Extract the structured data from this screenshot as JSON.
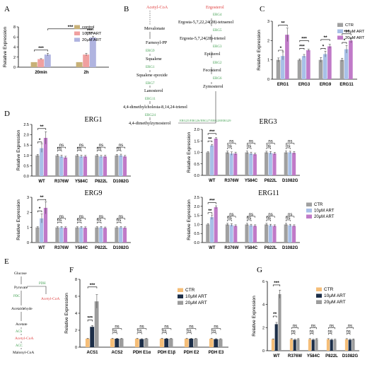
{
  "panel_letters": {
    "A": "A",
    "B": "B",
    "C": "C",
    "D": "D",
    "E": "E",
    "F": "F",
    "G": "G"
  },
  "colors": {
    "control": "#c8b178",
    "low": "#f0a0a0",
    "high": "#b0b4e0",
    "ctr": "#a0a0a0",
    "art10": "#a8c0e8",
    "art20": "#c07ac8",
    "f_ctr": "#f5be78",
    "f_10": "#1c2e48",
    "f_20": "#9c9c9c",
    "green": "#3f9f4f",
    "red": "#e04040",
    "axis": "#000000"
  },
  "pathwayB": {
    "nodes": [
      {
        "key": "acetyl",
        "text": "Acetyl-CoA",
        "kind": "red"
      },
      {
        "key": "meva",
        "text": "Mevalonate",
        "kind": "black"
      },
      {
        "key": "farn",
        "text": "Farnesyl-PP",
        "kind": "black"
      },
      {
        "key": "erg9",
        "text": "ERG9",
        "kind": "green"
      },
      {
        "key": "squal",
        "text": "Squalene",
        "kind": "black"
      },
      {
        "key": "erg1",
        "text": "ERG1",
        "kind": "green"
      },
      {
        "key": "sqep",
        "text": "Squalene epoxide",
        "kind": "black"
      },
      {
        "key": "erg7",
        "text": "ERG7",
        "kind": "green"
      },
      {
        "key": "lano",
        "text": "Lanosterol",
        "kind": "black"
      },
      {
        "key": "erg11",
        "text": "ERG11",
        "kind": "green"
      },
      {
        "key": "dmc",
        "text": "4,4-dimethylcholesta-8,14,24-trienol",
        "kind": "black"
      },
      {
        "key": "erg24",
        "text": "ERG24",
        "kind": "green"
      },
      {
        "key": "dmz",
        "text": "4,4-dimethylzymosterol",
        "kind": "black"
      },
      {
        "key": "ergm",
        "text": "ERG25/ERG26/ERG27/ERG28/ERG29",
        "kind": "green"
      },
      {
        "key": "ergo",
        "text": "Ergosterol",
        "kind": "red"
      },
      {
        "key": "erg4",
        "text": "ERG4",
        "kind": "green"
      },
      {
        "key": "tet",
        "text": "Ergosta-5,7,22,24(28)-tetraenol",
        "kind": "black"
      },
      {
        "key": "erg5",
        "text": "ERG5",
        "kind": "green"
      },
      {
        "key": "tri",
        "text": "Ergosta-5,7,24(28)-trienol",
        "kind": "black"
      },
      {
        "key": "erg3",
        "text": "ERG3",
        "kind": "green"
      },
      {
        "key": "epi",
        "text": "Episterol",
        "kind": "black"
      },
      {
        "key": "erg2",
        "text": "ERG2",
        "kind": "green"
      },
      {
        "key": "fec",
        "text": "Fecosterol",
        "kind": "black"
      },
      {
        "key": "erg6",
        "text": "ERG6",
        "kind": "green"
      },
      {
        "key": "zym",
        "text": "Zymosterol",
        "kind": "black"
      }
    ]
  },
  "pathwayE": {
    "nodes": [
      {
        "key": "glu",
        "text": "Glucose",
        "kind": "black"
      },
      {
        "key": "pyr",
        "text": "Pyruvate",
        "kind": "black"
      },
      {
        "key": "pdh",
        "text": "PDH",
        "kind": "green"
      },
      {
        "key": "pdc",
        "text": "PDC",
        "kind": "green"
      },
      {
        "key": "acCoA1",
        "text": "Acetyl-CoA",
        "kind": "red"
      },
      {
        "key": "ald",
        "text": "Acetaldehyde",
        "kind": "black"
      },
      {
        "key": "ac",
        "text": "Acetate",
        "kind": "black"
      },
      {
        "key": "acs",
        "text": "ACS",
        "kind": "green"
      },
      {
        "key": "acCoA2",
        "text": "Acetyl-CoA",
        "kind": "red"
      },
      {
        "key": "acc",
        "text": "ACC",
        "kind": "green"
      },
      {
        "key": "mal",
        "text": "Malonyl-CoA",
        "kind": "black"
      }
    ]
  },
  "ns": "ns",
  "chart_data": [
    {
      "panel": "A",
      "type": "bar",
      "title": "",
      "ylabel": "Relative Expression",
      "ylim": [
        0,
        8
      ],
      "yticks": [
        0,
        2,
        4,
        6,
        8
      ],
      "categories": [
        "20min",
        "2h"
      ],
      "series": [
        {
          "name": "control",
          "values": [
            1.0,
            1.0
          ]
        },
        {
          "name": "10μM ART",
          "values": [
            1.6,
            2.5
          ]
        },
        {
          "name": "20μM ART",
          "values": [
            2.5,
            5.9
          ]
        }
      ],
      "errors": [
        [
          0,
          0
        ],
        [
          0.1,
          0.25
        ],
        [
          0.25,
          0.25
        ]
      ],
      "legend": "top-left",
      "sig": [
        {
          "text": "***",
          "from": [
            0,
            0
          ],
          "to": [
            0,
            2
          ],
          "y": 3.4
        },
        {
          "text": "***",
          "from": [
            0,
            2
          ],
          "to": [
            1,
            2
          ],
          "y": 7.6
        },
        {
          "text": "***",
          "from": [
            1,
            1
          ],
          "to": [
            1,
            2
          ],
          "y": 6.9
        }
      ]
    },
    {
      "panel": "C",
      "type": "bar",
      "title": "",
      "ylabel": "Relative Expression",
      "ylim": [
        0,
        3
      ],
      "yticks": [
        0,
        1,
        2,
        3
      ],
      "categories": [
        "ERG1",
        "ERG3",
        "ERG9",
        "ERG11"
      ],
      "series": [
        {
          "name": "CTR",
          "values": [
            1.0,
            1.0,
            1.0,
            1.0
          ]
        },
        {
          "name": "10μM ART",
          "values": [
            1.2,
            1.2,
            1.3,
            1.55
          ]
        },
        {
          "name": "20μM ART",
          "values": [
            2.3,
            1.5,
            1.7,
            2.0
          ]
        }
      ],
      "errors": [
        [
          0.1,
          0.05,
          0.12,
          0.08
        ],
        [
          0.2,
          0.08,
          0.15,
          0.2
        ],
        [
          0.35,
          0.05,
          0.1,
          0.12
        ]
      ],
      "legend": "top-right",
      "sig": [
        {
          "text": "**",
          "from": [
            0,
            0
          ],
          "to": [
            0,
            2
          ],
          "y": 2.8
        },
        {
          "text": "*",
          "from": [
            0,
            0
          ],
          "to": [
            0,
            1
          ],
          "y": 1.5
        },
        {
          "text": "***",
          "from": [
            1,
            0
          ],
          "to": [
            1,
            2
          ],
          "y": 2.0
        },
        {
          "text": "***",
          "from": [
            1,
            0
          ],
          "to": [
            1,
            1
          ],
          "y": 1.6
        },
        {
          "text": "**",
          "from": [
            2,
            0
          ],
          "to": [
            2,
            2
          ],
          "y": 2.05
        },
        {
          "text": "*",
          "from": [
            2,
            0
          ],
          "to": [
            2,
            1
          ],
          "y": 1.6
        },
        {
          "text": "***",
          "from": [
            3,
            0
          ],
          "to": [
            3,
            2
          ],
          "y": 2.35
        },
        {
          "text": "*",
          "from": [
            3,
            0
          ],
          "to": [
            3,
            1
          ],
          "y": 1.9
        }
      ]
    },
    {
      "panel": "D1",
      "type": "bar",
      "title": "ERG1",
      "ylabel": "Relative Expression",
      "ylim": [
        0,
        2.5
      ],
      "yticks": [
        0.0,
        0.5,
        1.0,
        1.5,
        2.0,
        2.5
      ],
      "categories": [
        "WT",
        "R376W",
        "Y584C",
        "P822L",
        "D1082G"
      ],
      "series": [
        {
          "name": "CTR",
          "values": [
            1.0,
            1.0,
            1.0,
            1.0,
            1.0
          ]
        },
        {
          "name": "10μM ART",
          "values": [
            1.35,
            0.95,
            0.95,
            0.95,
            1.0
          ]
        },
        {
          "name": "20μM ART",
          "values": [
            1.85,
            0.9,
            0.95,
            0.95,
            0.95
          ]
        }
      ],
      "errors": [
        [
          0.05,
          0.05,
          0.05,
          0.05,
          0.05
        ],
        [
          0.2,
          0.06,
          0.06,
          0.05,
          0.06
        ],
        [
          0.3,
          0.06,
          0.05,
          0.06,
          0.05
        ]
      ],
      "legend": "none",
      "sig": [
        {
          "text": "**",
          "from": [
            0,
            0
          ],
          "to": [
            0,
            2
          ],
          "y": 2.3
        },
        {
          "text": "*",
          "from": [
            0,
            0
          ],
          "to": [
            0,
            1
          ],
          "y": 1.65
        }
      ],
      "ns_y": [
        1.25,
        1.4
      ]
    },
    {
      "panel": "D2",
      "type": "bar",
      "title": "ERG3",
      "ylabel": "Relative Expression",
      "ylim": [
        0,
        2.0
      ],
      "yticks": [
        0.0,
        0.5,
        1.0,
        1.5,
        2.0
      ],
      "categories": [
        "WT",
        "R376W",
        "Y584C",
        "P822L",
        "D1082G"
      ],
      "series": [
        {
          "name": "CTR",
          "values": [
            1.0,
            1.0,
            1.0,
            1.0,
            1.0
          ]
        },
        {
          "name": "10μM ART",
          "values": [
            1.3,
            0.95,
            0.95,
            0.98,
            1.0
          ]
        },
        {
          "name": "20μM ART",
          "values": [
            1.6,
            0.95,
            0.92,
            0.95,
            0.98
          ]
        }
      ],
      "errors": [
        [
          0.03,
          0.06,
          0.06,
          0.05,
          0.06
        ],
        [
          0.05,
          0.07,
          0.06,
          0.06,
          0.05
        ],
        [
          0.04,
          0.06,
          0.05,
          0.05,
          0.06
        ]
      ],
      "legend": "none",
      "sig": [
        {
          "text": "***",
          "from": [
            0,
            0
          ],
          "to": [
            0,
            2
          ],
          "y": 1.82
        },
        {
          "text": "**",
          "from": [
            0,
            0
          ],
          "to": [
            0,
            1
          ],
          "y": 1.5
        }
      ],
      "ns_y": [
        1.2,
        1.4
      ]
    },
    {
      "panel": "D3",
      "type": "bar",
      "title": "ERG9",
      "ylabel": "Relative Expression",
      "ylim": [
        0,
        3
      ],
      "yticks": [
        0,
        1,
        2,
        3
      ],
      "categories": [
        "WT",
        "R376W",
        "Y584C",
        "P822L",
        "D1082G"
      ],
      "series": [
        {
          "name": "CTR",
          "values": [
            1.0,
            1.0,
            1.0,
            1.0,
            1.0
          ]
        },
        {
          "name": "10μM ART",
          "values": [
            1.6,
            1.0,
            1.0,
            1.0,
            1.0
          ]
        },
        {
          "name": "20μM ART",
          "values": [
            2.3,
            0.98,
            0.98,
            0.97,
            0.98
          ]
        }
      ],
      "errors": [
        [
          0.05,
          0.05,
          0.05,
          0.05,
          0.05
        ],
        [
          0.3,
          0.06,
          0.06,
          0.06,
          0.06
        ],
        [
          0.4,
          0.06,
          0.06,
          0.06,
          0.06
        ]
      ],
      "legend": "none",
      "sig": [
        {
          "text": "**",
          "from": [
            0,
            0
          ],
          "to": [
            0,
            2
          ],
          "y": 2.85
        },
        {
          "text": "*",
          "from": [
            0,
            0
          ],
          "to": [
            0,
            1
          ],
          "y": 2.1
        }
      ],
      "ns_y": [
        1.35,
        1.6
      ]
    },
    {
      "panel": "D4",
      "type": "bar",
      "title": "ERG11",
      "ylabel": "Relative Expression",
      "ylim": [
        0,
        2.5
      ],
      "yticks": [
        0.0,
        0.5,
        1.0,
        1.5,
        2.0,
        2.5
      ],
      "categories": [
        "WT",
        "R376W",
        "Y584C",
        "P822L",
        "D1082G"
      ],
      "series": [
        {
          "name": "CTR",
          "values": [
            1.0,
            1.0,
            1.0,
            1.0,
            1.0
          ]
        },
        {
          "name": "10μM ART",
          "values": [
            1.4,
            0.97,
            0.95,
            0.95,
            0.95
          ]
        },
        {
          "name": "20μM ART",
          "values": [
            1.95,
            0.92,
            0.92,
            0.92,
            0.92
          ]
        }
      ],
      "errors": [
        [
          0.05,
          0.06,
          0.06,
          0.06,
          0.06
        ],
        [
          0.12,
          0.07,
          0.06,
          0.06,
          0.06
        ],
        [
          0.08,
          0.06,
          0.06,
          0.06,
          0.06
        ]
      ],
      "legend": "right",
      "sig": [
        {
          "text": "***",
          "from": [
            0,
            0
          ],
          "to": [
            0,
            2
          ],
          "y": 2.2
        },
        {
          "text": "**",
          "from": [
            0,
            0
          ],
          "to": [
            0,
            1
          ],
          "y": 1.65
        }
      ],
      "ns_y": [
        1.25,
        1.45
      ]
    },
    {
      "panel": "F",
      "type": "bar",
      "title": "",
      "ylabel": "Relative Expression",
      "ylim": [
        0,
        8
      ],
      "yticks": [
        0,
        2,
        4,
        6,
        8
      ],
      "categories": [
        "ACS1",
        "ACS2",
        "PDH E1α",
        "PDH E1β",
        "PDH E2",
        "PDH E3"
      ],
      "series": [
        {
          "name": "CTR",
          "values": [
            1.0,
            1.0,
            1.0,
            1.0,
            1.0,
            1.0
          ]
        },
        {
          "name": "10μM ART",
          "values": [
            2.4,
            1.0,
            0.95,
            1.0,
            1.0,
            0.95
          ]
        },
        {
          "name": "20μM ART",
          "values": [
            5.4,
            1.0,
            1.0,
            1.0,
            1.0,
            0.95
          ]
        }
      ],
      "errors": [
        [
          0.05,
          0.05,
          0.05,
          0.05,
          0.05,
          0.05
        ],
        [
          0.15,
          0.05,
          0.05,
          0.05,
          0.05,
          0.05
        ],
        [
          0.8,
          0.05,
          0.05,
          0.05,
          0.05,
          0.05
        ]
      ],
      "legend": "top-right",
      "sig": [
        {
          "text": "***",
          "from": [
            0,
            0
          ],
          "to": [
            0,
            2
          ],
          "y": 7.1
        },
        {
          "text": "***",
          "from": [
            0,
            0
          ],
          "to": [
            0,
            1
          ],
          "y": 3.2
        }
      ],
      "ns_y": [
        1.7,
        2.2
      ]
    },
    {
      "panel": "G",
      "type": "bar",
      "title": "",
      "ylabel": "Relative Expression",
      "ylim": [
        0,
        6
      ],
      "yticks": [
        0,
        2,
        4,
        6
      ],
      "categories": [
        "WT",
        "R376W",
        "Y584C",
        "P822L",
        "D1082G"
      ],
      "series": [
        {
          "name": "CTR",
          "values": [
            1.0,
            1.0,
            1.0,
            1.0,
            1.0
          ]
        },
        {
          "name": "10μM ART",
          "values": [
            2.3,
            0.95,
            0.95,
            0.95,
            0.95
          ]
        },
        {
          "name": "20μM ART",
          "values": [
            4.9,
            1.0,
            1.0,
            0.95,
            0.98
          ]
        }
      ],
      "errors": [
        [
          0.03,
          0.05,
          0.05,
          0.05,
          0.05
        ],
        [
          0.15,
          0.05,
          0.05,
          0.05,
          0.05
        ],
        [
          0.35,
          0.05,
          0.05,
          0.05,
          0.05
        ]
      ],
      "legend": "top-right",
      "sig": [
        {
          "text": "***",
          "from": [
            0,
            0
          ],
          "to": [
            0,
            2
          ],
          "y": 5.7
        },
        {
          "text": "**",
          "from": [
            0,
            0
          ],
          "to": [
            0,
            1
          ],
          "y": 3.0
        }
      ],
      "ns_y": [
        1.5,
        2.0
      ]
    }
  ]
}
